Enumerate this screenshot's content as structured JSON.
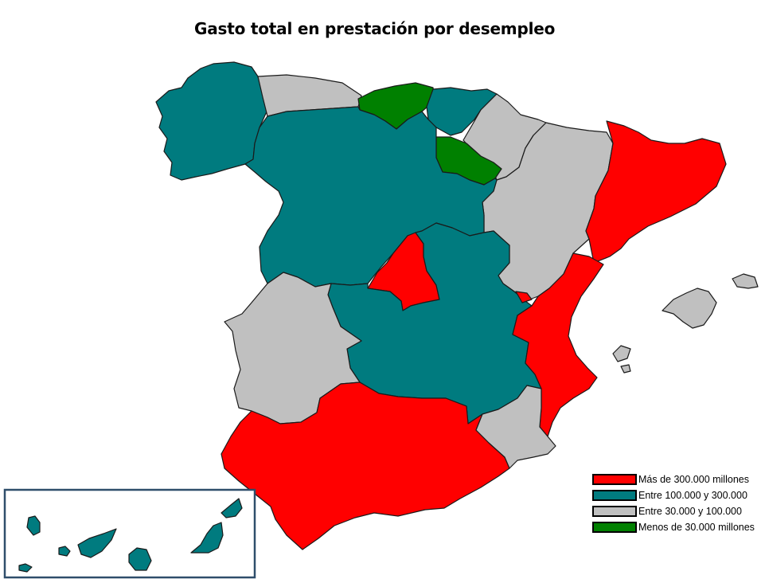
{
  "title": "Gasto total en prestación por desempleo",
  "colors": {
    "mas_300": "#ff0000",
    "entre_100_300": "#007b7f",
    "entre_30_100": "#c0c0c0",
    "menos_30": "#008000"
  },
  "legend": [
    {
      "label": "Más de 300.000 millones",
      "color": "#ff0000"
    },
    {
      "label": "Entre 100.000 y 300.000",
      "color": "#007b7f"
    },
    {
      "label": "Entre 30.000 y 100.000",
      "color": "#c0c0c0"
    },
    {
      "label": "Menos de 30.000 millones",
      "color": "#008000"
    }
  ],
  "regions": [
    {
      "name": "Galicia",
      "category": "entre_100_300"
    },
    {
      "name": "Asturias",
      "category": "entre_30_100"
    },
    {
      "name": "Cantabria",
      "category": "menos_30"
    },
    {
      "name": "País Vasco",
      "category": "entre_100_300"
    },
    {
      "name": "Navarra",
      "category": "entre_30_100"
    },
    {
      "name": "La Rioja",
      "category": "menos_30"
    },
    {
      "name": "Aragón",
      "category": "entre_30_100"
    },
    {
      "name": "Cataluña",
      "category": "mas_300"
    },
    {
      "name": "Castilla y León",
      "category": "entre_100_300"
    },
    {
      "name": "Madrid",
      "category": "mas_300"
    },
    {
      "name": "Castilla-La Mancha",
      "category": "entre_100_300"
    },
    {
      "name": "Comunidad Valenciana",
      "category": "mas_300"
    },
    {
      "name": "Extremadura",
      "category": "entre_30_100"
    },
    {
      "name": "Andalucía",
      "category": "mas_300"
    },
    {
      "name": "Murcia",
      "category": "entre_30_100"
    },
    {
      "name": "Islas Baleares",
      "category": "entre_30_100"
    },
    {
      "name": "Canarias",
      "category": "entre_100_300"
    }
  ]
}
